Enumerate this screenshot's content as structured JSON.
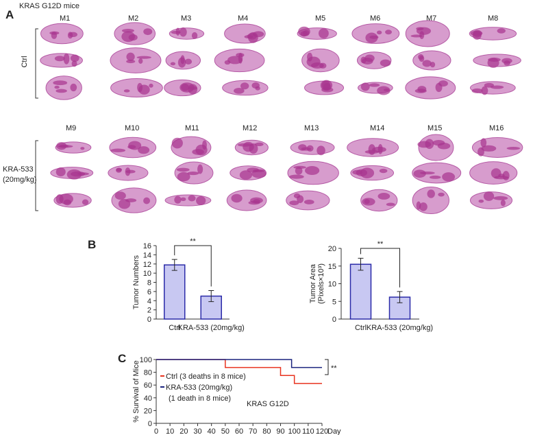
{
  "panel_labels": [
    "A",
    "B",
    "C"
  ],
  "panel_a": {
    "title": "KRAS G12D mice",
    "row_labels": [
      "Ctrl",
      "KRA-533",
      "(20mg/kg)"
    ],
    "mouse_labels": [
      [
        "M1",
        "M2",
        "M3",
        "M4",
        "M5",
        "M6",
        "M7",
        "M8"
      ],
      [
        "M9",
        "M10",
        "M11",
        "M12",
        "M13",
        "M14",
        "M15",
        "M16"
      ]
    ]
  },
  "chart_data": [
    {
      "type": "bar",
      "y_label": [
        "Tumor Numbers"
      ],
      "categories": [
        "Ctrl",
        "KRA-533 (20mg/kg)"
      ],
      "values": [
        11.8,
        5.0
      ],
      "errors": [
        1.2,
        1.2
      ],
      "color": "#c8c8f2",
      "edge_color": "#2a2aa8",
      "ylim": [
        0,
        16
      ],
      "yticks": [
        0,
        2,
        4,
        6,
        8,
        10,
        12,
        14,
        16
      ],
      "significance": "**"
    },
    {
      "type": "bar",
      "y_label": [
        "Tumor Area",
        "(Pixels×10³)"
      ],
      "categories": [
        "Ctrl",
        "KRA-533 (20mg/kg)"
      ],
      "values": [
        15.5,
        6.2
      ],
      "errors": [
        1.7,
        1.6
      ],
      "color": "#c8c8f2",
      "edge_color": "#2a2aa8",
      "ylim": [
        0,
        20
      ],
      "yticks": [
        0,
        5,
        10,
        15,
        20
      ],
      "significance": "**"
    },
    {
      "type": "line",
      "y_label": [
        "% Survival of Mice"
      ],
      "x_label": "Day",
      "xlim": [
        0,
        120
      ],
      "xticks": [
        0,
        10,
        20,
        30,
        40,
        50,
        60,
        70,
        80,
        90,
        100,
        110,
        120
      ],
      "ylim": [
        0,
        100
      ],
      "yticks": [
        0,
        20,
        40,
        60,
        80,
        100
      ],
      "series": [
        {
          "name": "Ctrl (3 deaths in 8 mice)",
          "color": "#e8321e",
          "x": [
            0,
            50,
            50,
            90,
            90,
            100,
            100,
            120
          ],
          "values": [
            100,
            100,
            87.5,
            87.5,
            75,
            75,
            62.5,
            62.5
          ]
        },
        {
          "name": "KRA-533 (20mg/kg)",
          "note": "(1 death in 8 mice)",
          "color": "#1a237e",
          "x": [
            0,
            98,
            98,
            120
          ],
          "values": [
            100,
            100,
            87.5,
            87.5
          ]
        }
      ],
      "annotation": "KRAS G12D",
      "significance": "**"
    }
  ]
}
